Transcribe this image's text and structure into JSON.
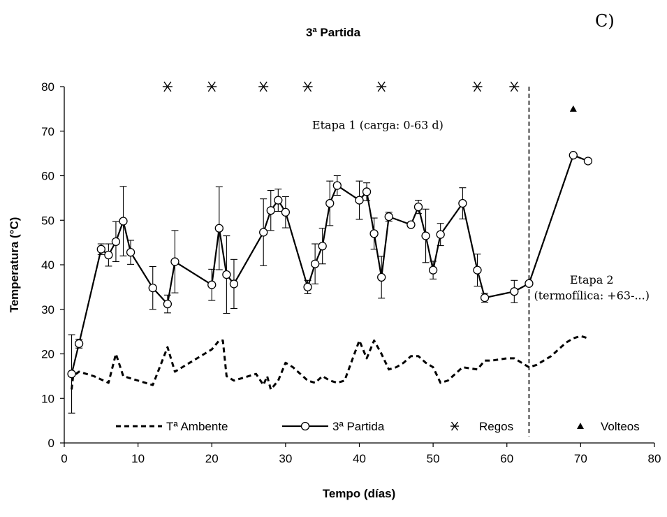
{
  "panel_label": "C)",
  "chart_data": {
    "type": "line",
    "title": "3ª Partida",
    "xlabel": "Tempo (días)",
    "ylabel": "Temperatura (°C)",
    "xlim": [
      0,
      80
    ],
    "ylim": [
      0,
      80
    ],
    "x_ticks": [
      0,
      10,
      20,
      30,
      40,
      50,
      60,
      70,
      80
    ],
    "y_ticks": [
      0,
      10,
      20,
      30,
      40,
      50,
      60,
      70,
      80
    ],
    "grid": false,
    "legend_position": "bottom",
    "series": [
      {
        "name": "Tª Ambente",
        "style": "dashed",
        "color": "#000000",
        "x": [
          1,
          1.2,
          2,
          4,
          6,
          7,
          8,
          9,
          10,
          11,
          12,
          14,
          15,
          16,
          18,
          19,
          20,
          21,
          21.5,
          22,
          23,
          24,
          26,
          27,
          27.5,
          28,
          29,
          30,
          31,
          33,
          34,
          35,
          36,
          37,
          38,
          40,
          41,
          42,
          43,
          44,
          45,
          46,
          47,
          48,
          49,
          50,
          51,
          52,
          53,
          54,
          56,
          57,
          58,
          60,
          61,
          62,
          63,
          64,
          66,
          67,
          68,
          69,
          70,
          71
        ],
        "y": [
          12,
          15,
          16,
          15,
          13.5,
          20,
          15,
          14.5,
          14,
          13.5,
          13,
          21.5,
          16,
          17,
          19,
          20,
          21,
          23,
          23,
          15,
          14,
          14.5,
          15.5,
          13,
          15,
          12,
          14,
          18,
          17,
          14,
          13.5,
          15,
          14,
          13.5,
          14,
          23,
          19,
          23,
          20,
          16.5,
          17,
          18,
          19.5,
          19.5,
          18,
          17,
          13.5,
          14,
          15.5,
          17,
          16.5,
          18.5,
          18.5,
          19,
          19,
          18,
          17,
          17.5,
          19.5,
          21,
          22.5,
          23.5,
          24,
          23.5
        ]
      },
      {
        "name": "3ª Partida",
        "style": "solid-circle",
        "color": "#000000",
        "x": [
          1,
          2,
          5,
          6,
          7,
          8,
          9,
          12,
          14,
          15,
          20,
          21,
          22,
          23,
          27,
          28,
          29,
          30,
          33,
          34,
          35,
          36,
          37,
          40,
          41,
          42,
          43,
          44,
          47,
          48,
          49,
          50,
          51,
          54,
          56,
          57,
          61,
          63,
          69,
          71
        ],
        "y": [
          15.5,
          22.3,
          43.5,
          42.2,
          45.2,
          49.8,
          42.8,
          34.8,
          31.2,
          40.7,
          35.5,
          48.2,
          37.8,
          35.7,
          47.3,
          52.2,
          54.5,
          51.8,
          35,
          40.2,
          44.2,
          53.8,
          57.8,
          54.5,
          56.4,
          47,
          37.2,
          50.8,
          49,
          53,
          46.5,
          38.8,
          46.8,
          53.8,
          38.8,
          32.6,
          34,
          35.8,
          64.6,
          63.3
        ],
        "error": [
          8.8,
          1.0,
          1.2,
          2.5,
          4.5,
          7.8,
          2.7,
          4.8,
          2.0,
          7.0,
          3.5,
          9.3,
          8.7,
          5.5,
          7.5,
          4.5,
          2.5,
          3.5,
          1.5,
          4.5,
          4.0,
          5.0,
          2.2,
          4.3,
          2.0,
          3.5,
          4.7,
          1.0,
          0.5,
          1.5,
          6.0,
          2.0,
          2.5,
          3.5,
          3.6,
          1.0,
          2.5,
          0.5,
          0,
          0
        ]
      },
      {
        "name": "Regos",
        "style": "asterisk",
        "color": "#000000",
        "x": [
          14,
          20,
          27,
          33,
          43,
          56,
          61
        ],
        "y": [
          80,
          80,
          80,
          80,
          80,
          80,
          80
        ]
      },
      {
        "name": "Volteos",
        "style": "triangle",
        "color": "#000000",
        "x": [
          69
        ],
        "y": [
          75
        ]
      }
    ],
    "vline": {
      "x": 63,
      "style": "dashed"
    },
    "annotations": [
      {
        "text": "Etapa 1 (carga: 0-63 d)",
        "x": 42.5,
        "y": 70.5
      },
      {
        "text": "Etapa 2",
        "x": 71.5,
        "y": 35.8
      },
      {
        "text": "(termofílica: +63-...)",
        "x": 71.5,
        "y": 32.2
      }
    ]
  }
}
